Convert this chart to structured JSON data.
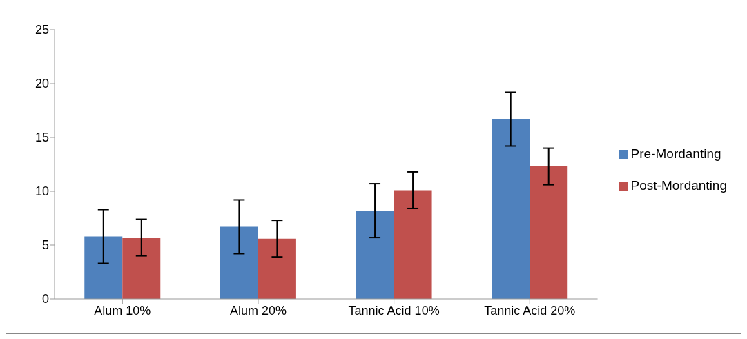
{
  "chart_data": {
    "type": "bar",
    "categories": [
      "Alum 10%",
      "Alum 20%",
      "Tannic Acid 10%",
      "Tannic Acid 20%"
    ],
    "series": [
      {
        "name": "Pre-Mordanting",
        "color": "#4f81bd",
        "values": [
          5.8,
          6.7,
          8.2,
          16.7
        ],
        "errors": [
          2.5,
          2.5,
          2.5,
          2.5
        ]
      },
      {
        "name": "Post-Mordanting",
        "color": "#c0504d",
        "values": [
          5.7,
          5.6,
          10.1,
          12.3
        ],
        "errors": [
          1.7,
          1.7,
          1.7,
          1.7
        ]
      }
    ],
    "ylim": [
      0,
      25
    ],
    "yticks": [
      0,
      5,
      10,
      15,
      20,
      25
    ],
    "grid": false,
    "legend": "right"
  }
}
